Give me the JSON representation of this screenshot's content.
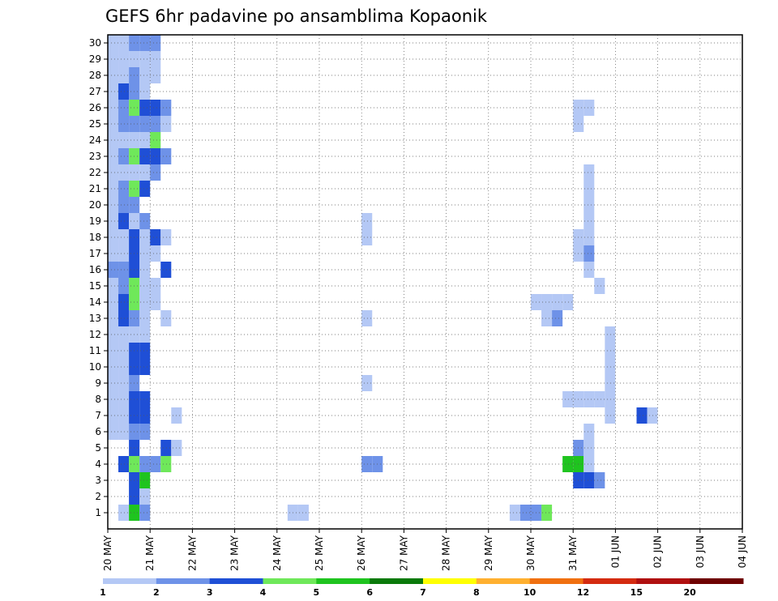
{
  "chart_data": {
    "type": "heatmap",
    "title": "GEFS 6hr padavine po ansamblima Kopaonik",
    "y_ticks": [
      "1",
      "2",
      "3",
      "4",
      "5",
      "6",
      "7",
      "8",
      "9",
      "10",
      "11",
      "12",
      "13",
      "14",
      "15",
      "16",
      "17",
      "18",
      "19",
      "20",
      "21",
      "22",
      "23",
      "24",
      "25",
      "26",
      "27",
      "28",
      "29",
      "30"
    ],
    "x_ticks": [
      "20 MAY",
      "21 MAY",
      "22 MAY",
      "23 MAY",
      "24 MAY",
      "25 MAY",
      "26 MAY",
      "27 MAY",
      "28 MAY",
      "29 MAY",
      "30 MAY",
      "31 MAY",
      "01 JUN",
      "02 JUN",
      "03 JUN",
      "04 JUN"
    ],
    "x_range": [
      "20 MAY",
      "04 JUN"
    ],
    "time_step_hours": 6,
    "y_range": [
      0.5,
      30.5
    ],
    "grid": true,
    "legend": {
      "placement": "bottom",
      "labels": [
        "1",
        "2",
        "3",
        "4",
        "5",
        "6",
        "7",
        "8",
        "10",
        "12",
        "15",
        "20"
      ],
      "colors": [
        "#b4c8f5",
        "#6e92e8",
        "#1f4fd6",
        "#6fe85a",
        "#1fc41f",
        "#0a7a0a",
        "#ffff00",
        "#ffb030",
        "#f07010",
        "#d42b10",
        "#b01010",
        "#6e0000"
      ]
    },
    "value_unit": "color class (index into legend.colors)",
    "cells": [
      [
        1,
        1,
        0
      ],
      [
        1,
        2,
        4
      ],
      [
        1,
        3,
        1
      ],
      [
        1,
        17,
        0
      ],
      [
        1,
        18,
        0
      ],
      [
        2,
        2,
        2
      ],
      [
        2,
        3,
        0
      ],
      [
        3,
        2,
        2
      ],
      [
        3,
        3,
        4
      ],
      [
        4,
        1,
        2
      ],
      [
        4,
        2,
        3
      ],
      [
        4,
        3,
        1
      ],
      [
        4,
        4,
        1
      ],
      [
        4,
        5,
        3
      ],
      [
        5,
        2,
        2
      ],
      [
        5,
        5,
        2
      ],
      [
        5,
        6,
        0
      ],
      [
        6,
        0,
        0
      ],
      [
        6,
        1,
        0
      ],
      [
        6,
        2,
        1
      ],
      [
        6,
        3,
        1
      ],
      [
        7,
        0,
        0
      ],
      [
        7,
        1,
        0
      ],
      [
        7,
        2,
        2
      ],
      [
        7,
        3,
        2
      ],
      [
        7,
        6,
        0
      ],
      [
        8,
        0,
        0
      ],
      [
        8,
        1,
        0
      ],
      [
        8,
        2,
        2
      ],
      [
        8,
        3,
        2
      ],
      [
        9,
        0,
        0
      ],
      [
        9,
        1,
        0
      ],
      [
        9,
        2,
        1
      ],
      [
        10,
        0,
        0
      ],
      [
        10,
        1,
        0
      ],
      [
        10,
        2,
        2
      ],
      [
        10,
        3,
        2
      ],
      [
        11,
        0,
        0
      ],
      [
        11,
        1,
        0
      ],
      [
        11,
        2,
        2
      ],
      [
        11,
        3,
        2
      ],
      [
        12,
        0,
        0
      ],
      [
        12,
        1,
        0
      ],
      [
        12,
        2,
        0
      ],
      [
        12,
        3,
        0
      ],
      [
        13,
        0,
        0
      ],
      [
        13,
        1,
        2
      ],
      [
        13,
        2,
        1
      ],
      [
        13,
        3,
        0
      ],
      [
        13,
        5,
        0
      ],
      [
        14,
        0,
        0
      ],
      [
        14,
        1,
        2
      ],
      [
        14,
        2,
        3
      ],
      [
        14,
        3,
        0
      ],
      [
        14,
        4,
        0
      ],
      [
        15,
        0,
        0
      ],
      [
        15,
        1,
        1
      ],
      [
        15,
        2,
        3
      ],
      [
        15,
        3,
        0
      ],
      [
        15,
        4,
        0
      ],
      [
        16,
        0,
        1
      ],
      [
        16,
        1,
        1
      ],
      [
        16,
        2,
        2
      ],
      [
        16,
        3,
        0
      ],
      [
        16,
        5,
        2
      ],
      [
        17,
        0,
        0
      ],
      [
        17,
        1,
        0
      ],
      [
        17,
        2,
        2
      ],
      [
        17,
        3,
        0
      ],
      [
        17,
        4,
        0
      ],
      [
        18,
        0,
        0
      ],
      [
        18,
        1,
        0
      ],
      [
        18,
        2,
        2
      ],
      [
        18,
        3,
        0
      ],
      [
        18,
        4,
        2
      ],
      [
        18,
        5,
        0
      ],
      [
        19,
        0,
        0
      ],
      [
        19,
        1,
        2
      ],
      [
        19,
        2,
        0
      ],
      [
        19,
        3,
        1
      ],
      [
        20,
        0,
        0
      ],
      [
        20,
        1,
        1
      ],
      [
        20,
        2,
        1
      ],
      [
        21,
        0,
        0
      ],
      [
        21,
        1,
        1
      ],
      [
        21,
        2,
        3
      ],
      [
        21,
        3,
        2
      ],
      [
        22,
        0,
        0
      ],
      [
        22,
        1,
        0
      ],
      [
        22,
        2,
        0
      ],
      [
        22,
        3,
        0
      ],
      [
        22,
        4,
        1
      ],
      [
        23,
        0,
        0
      ],
      [
        23,
        1,
        1
      ],
      [
        23,
        2,
        3
      ],
      [
        23,
        3,
        2
      ],
      [
        23,
        4,
        2
      ],
      [
        23,
        5,
        1
      ],
      [
        24,
        0,
        0
      ],
      [
        24,
        1,
        0
      ],
      [
        24,
        2,
        0
      ],
      [
        24,
        3,
        0
      ],
      [
        24,
        4,
        3
      ],
      [
        25,
        0,
        0
      ],
      [
        25,
        1,
        1
      ],
      [
        25,
        2,
        1
      ],
      [
        25,
        3,
        1
      ],
      [
        25,
        4,
        1
      ],
      [
        25,
        5,
        0
      ],
      [
        26,
        0,
        0
      ],
      [
        26,
        1,
        1
      ],
      [
        26,
        2,
        3
      ],
      [
        26,
        3,
        2
      ],
      [
        26,
        4,
        2
      ],
      [
        26,
        5,
        1
      ],
      [
        27,
        0,
        0
      ],
      [
        27,
        1,
        2
      ],
      [
        27,
        2,
        1
      ],
      [
        27,
        3,
        0
      ],
      [
        28,
        0,
        0
      ],
      [
        28,
        1,
        0
      ],
      [
        28,
        2,
        1
      ],
      [
        28,
        3,
        0
      ],
      [
        28,
        4,
        0
      ],
      [
        29,
        0,
        0
      ],
      [
        29,
        1,
        0
      ],
      [
        29,
        2,
        0
      ],
      [
        29,
        3,
        0
      ],
      [
        29,
        4,
        0
      ],
      [
        30,
        0,
        0
      ],
      [
        30,
        1,
        0
      ],
      [
        30,
        2,
        1
      ],
      [
        30,
        3,
        1
      ],
      [
        30,
        4,
        1
      ],
      [
        4,
        24,
        1
      ],
      [
        4,
        25,
        1
      ],
      [
        9,
        24,
        0
      ],
      [
        13,
        24,
        0
      ],
      [
        18,
        24,
        0
      ],
      [
        19,
        24,
        0
      ],
      [
        1,
        41,
        3
      ],
      [
        1,
        40,
        1
      ],
      [
        1,
        39,
        1
      ],
      [
        1,
        38,
        0
      ],
      [
        3,
        44,
        2
      ],
      [
        3,
        45,
        2
      ],
      [
        3,
        46,
        1
      ],
      [
        4,
        43,
        4
      ],
      [
        4,
        44,
        4
      ],
      [
        4,
        45,
        0
      ],
      [
        5,
        44,
        1
      ],
      [
        5,
        45,
        0
      ],
      [
        6,
        45,
        0
      ],
      [
        7,
        47,
        0
      ],
      [
        7,
        50,
        2
      ],
      [
        7,
        51,
        0
      ],
      [
        8,
        43,
        0
      ],
      [
        8,
        44,
        0
      ],
      [
        8,
        45,
        0
      ],
      [
        8,
        46,
        0
      ],
      [
        8,
        47,
        0
      ],
      [
        9,
        47,
        0
      ],
      [
        10,
        47,
        0
      ],
      [
        11,
        47,
        0
      ],
      [
        12,
        47,
        0
      ],
      [
        13,
        41,
        0
      ],
      [
        13,
        42,
        1
      ],
      [
        14,
        40,
        0
      ],
      [
        14,
        41,
        0
      ],
      [
        14,
        42,
        0
      ],
      [
        14,
        43,
        0
      ],
      [
        15,
        46,
        0
      ],
      [
        16,
        45,
        0
      ],
      [
        17,
        44,
        0
      ],
      [
        17,
        45,
        1
      ],
      [
        18,
        44,
        0
      ],
      [
        18,
        45,
        0
      ],
      [
        19,
        45,
        0
      ],
      [
        20,
        45,
        0
      ],
      [
        21,
        45,
        0
      ],
      [
        22,
        45,
        0
      ],
      [
        25,
        44,
        0
      ],
      [
        26,
        44,
        0
      ],
      [
        26,
        45,
        0
      ]
    ]
  }
}
